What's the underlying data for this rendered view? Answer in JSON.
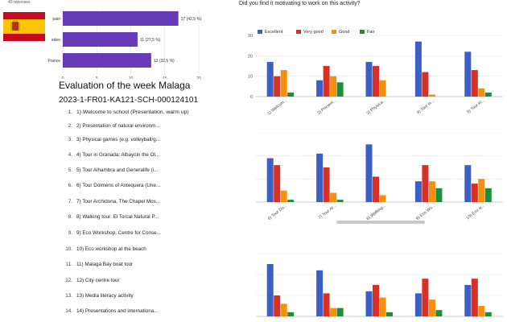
{
  "left": {
    "responses": "40 reponses",
    "country_bars": {
      "categories": [
        "pain",
        "eden",
        "France"
      ],
      "values": [
        17,
        11,
        13
      ],
      "value_labels": [
        "17 (42,5 %)",
        "11 (27,5 %)",
        "13 (32,5 %)"
      ],
      "ticks": [
        "0",
        "5",
        "10",
        "15",
        "20"
      ],
      "xlim": [
        0,
        20
      ],
      "bar_color": "#673ab7"
    },
    "flag_icon": "spain-flag-icon",
    "title": "Evaluation of the week Malaga",
    "code": "2023-1-FR01-KA121-SCH-000124101",
    "activities": [
      {
        "num": "1.",
        "label": "1) Welcome to school (Presentation, warm up)"
      },
      {
        "num": "2.",
        "label": "2) Presentation of natural environm..."
      },
      {
        "num": "3.",
        "label": "3) Physical games (e.g. volleyball/g..."
      },
      {
        "num": "4.",
        "label": "4) Tour in Granada: Albaycin the Ol..."
      },
      {
        "num": "5.",
        "label": "5) Tour Alhambra and Generalife (i..."
      },
      {
        "num": "6.",
        "label": "6) Tour Dolmens of Antequera (Une..."
      },
      {
        "num": "7.",
        "label": "7) Tour Archidona, The Chapel Mos..."
      },
      {
        "num": "8.",
        "label": "8) Walking tour: El Torcal Natural P..."
      },
      {
        "num": "9.",
        "label": "9) Eco Workshop, Centre for Conse..."
      },
      {
        "num": "10.",
        "label": "10) Eco workshop at the beach"
      },
      {
        "num": "11.",
        "label": "11) Malaga Bay boat tour"
      },
      {
        "num": "12.",
        "label": "12) City centre tour"
      },
      {
        "num": "13.",
        "label": "13) Media literacy activity"
      },
      {
        "num": "14.",
        "label": "14) Presentations and internationa..."
      }
    ]
  },
  "right": {
    "question": "Did you find it motivating to work on this activity?"
  },
  "chart_data": [
    {
      "type": "bar",
      "categories": [
        "1) Welcom...",
        "2) Present...",
        "3) Physica...",
        "4) Tour in ...",
        "5) Tour Al..."
      ],
      "series": [
        {
          "name": "Excellent",
          "color": "#3b5fc4",
          "values": [
            17,
            8,
            17,
            27,
            22
          ]
        },
        {
          "name": "Very good",
          "color": "#d93025",
          "values": [
            10,
            15,
            15,
            12,
            13
          ]
        },
        {
          "name": "Good",
          "color": "#f4900c",
          "values": [
            13,
            10,
            8,
            1,
            4
          ]
        },
        {
          "name": "Fair",
          "color": "#1e8e3e",
          "values": [
            2,
            7,
            0,
            0,
            2
          ]
        }
      ],
      "yticks": [
        "0",
        "10",
        "20",
        "30"
      ],
      "ylim": [
        0,
        30
      ],
      "legend": "top-left"
    },
    {
      "type": "bar",
      "categories": [
        "6) Tour Do...",
        "7) Tour Ar...",
        "8) Walking...",
        "9) Eco Wo...",
        "10) Eco w..."
      ],
      "series": [
        {
          "name": "Excellent",
          "color": "#3b5fc4",
          "values": [
            19,
            21,
            25,
            9,
            16
          ]
        },
        {
          "name": "Very good",
          "color": "#d93025",
          "values": [
            16,
            15,
            11,
            16,
            8
          ]
        },
        {
          "name": "Good",
          "color": "#f4900c",
          "values": [
            5,
            4,
            3,
            9,
            10
          ]
        },
        {
          "name": "Fair",
          "color": "#1e8e3e",
          "values": [
            1,
            1,
            0,
            6,
            6
          ]
        }
      ],
      "ylim": [
        0,
        30
      ]
    },
    {
      "type": "bar",
      "categories": [
        "",
        "",
        "",
        "",
        ""
      ],
      "series": [
        {
          "name": "Excellent",
          "color": "#3b5fc4",
          "values": [
            25,
            22,
            12,
            11,
            15
          ]
        },
        {
          "name": "Very good",
          "color": "#d93025",
          "values": [
            10,
            11,
            15,
            18,
            18
          ]
        },
        {
          "name": "Good",
          "color": "#f4900c",
          "values": [
            6,
            4,
            9,
            8,
            5
          ]
        },
        {
          "name": "Fair",
          "color": "#1e8e3e",
          "values": [
            2,
            4,
            2,
            3,
            2
          ]
        }
      ],
      "ylim": [
        0,
        30
      ]
    }
  ]
}
